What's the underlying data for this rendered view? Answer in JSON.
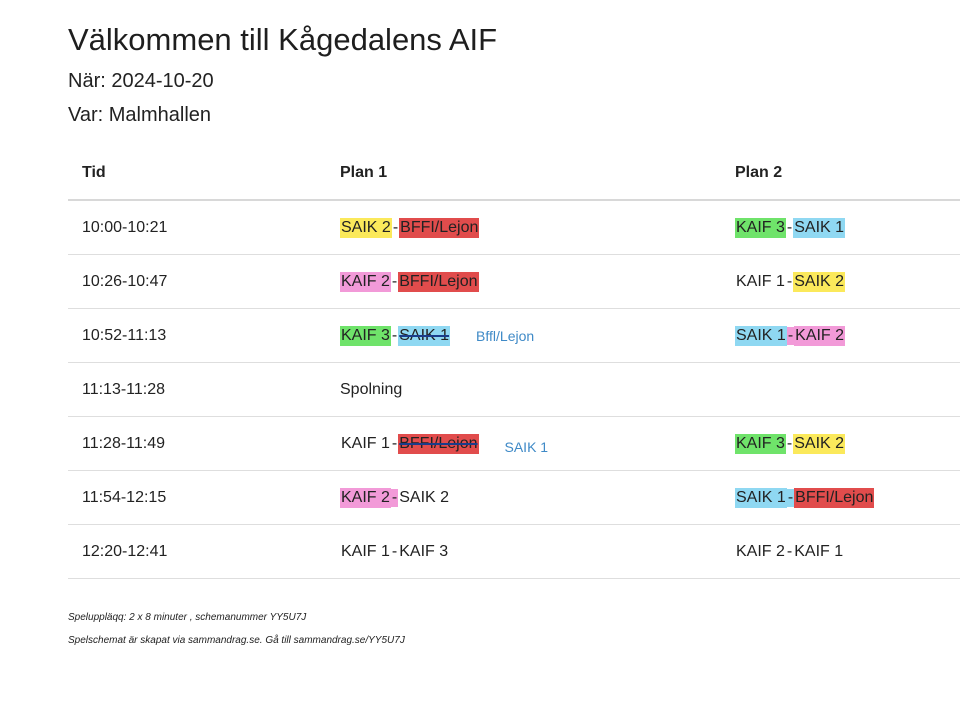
{
  "header": {
    "title": "Välkommen till Kågedalens AIF",
    "when": "När: 2024-10-20",
    "where": "Var: Malmhallen"
  },
  "colors": {
    "yellow": "#fbe95b",
    "red": "#e14c4c",
    "green": "#6fe36a",
    "blue": "#8fd8f2",
    "pink": "#f29ad8",
    "note_blue": "#3f8ac7"
  },
  "table": {
    "headers": {
      "time": "Tid",
      "plan1": "Plan 1",
      "plan2": "Plan 2"
    },
    "rows": [
      {
        "time": "10:00-10:21",
        "p1": {
          "a": "SAIK 2",
          "sep": " - ",
          "b": "BFFI/Lejon"
        },
        "p2": {
          "a": "KAIF 3",
          "sep": " - ",
          "b": "SAIK 1"
        }
      },
      {
        "time": "10:26-10:47",
        "p1": {
          "a": "KAIF 2",
          "sep": " - ",
          "b": "BFFI/Lejon"
        },
        "p2": {
          "a": "KAIF 1",
          "sep": " - ",
          "b": "SAIK 2"
        }
      },
      {
        "time": "10:52-11:13",
        "p1": {
          "a": "KAIF 3",
          "sep": " - ",
          "b": "SAIK 1",
          "note": "Bffl/Lejon"
        },
        "p2": {
          "a": "SAIK 1",
          "sep": " - ",
          "b": "KAIF 2"
        }
      },
      {
        "time": "11:13-11:28",
        "p1": {
          "text": "Spolning"
        },
        "p2": {
          "text": ""
        }
      },
      {
        "time": "11:28-11:49",
        "p1": {
          "a": "KAIF 1",
          "sep": " - ",
          "b": "BFFI/Lejon",
          "note": "SAIK 1"
        },
        "p2": {
          "a": "KAIF 3",
          "sep": " - ",
          "b": "SAIK 2"
        }
      },
      {
        "time": "11:54-12:15",
        "p1": {
          "a": "KAIF 2",
          "sep": " - ",
          "b": "SAIK 2"
        },
        "p2": {
          "a": "SAIK 1",
          "sep": " - ",
          "b": "BFFI/Lejon"
        }
      },
      {
        "time": "12:20-12:41",
        "p1": {
          "a": "KAIF 1",
          "sep": " - ",
          "b": "KAIF 3"
        },
        "p2": {
          "a": "KAIF 2",
          "sep": " - ",
          "b": "KAIF 1"
        }
      }
    ]
  },
  "footer": {
    "line1": "Speluppläqq: 2 x 8 minuter , schemanummer YY5U7J",
    "line2": "Spelschemat är skapat via sammandrag.se. Gå till sammandrag.se/YY5U7J"
  }
}
